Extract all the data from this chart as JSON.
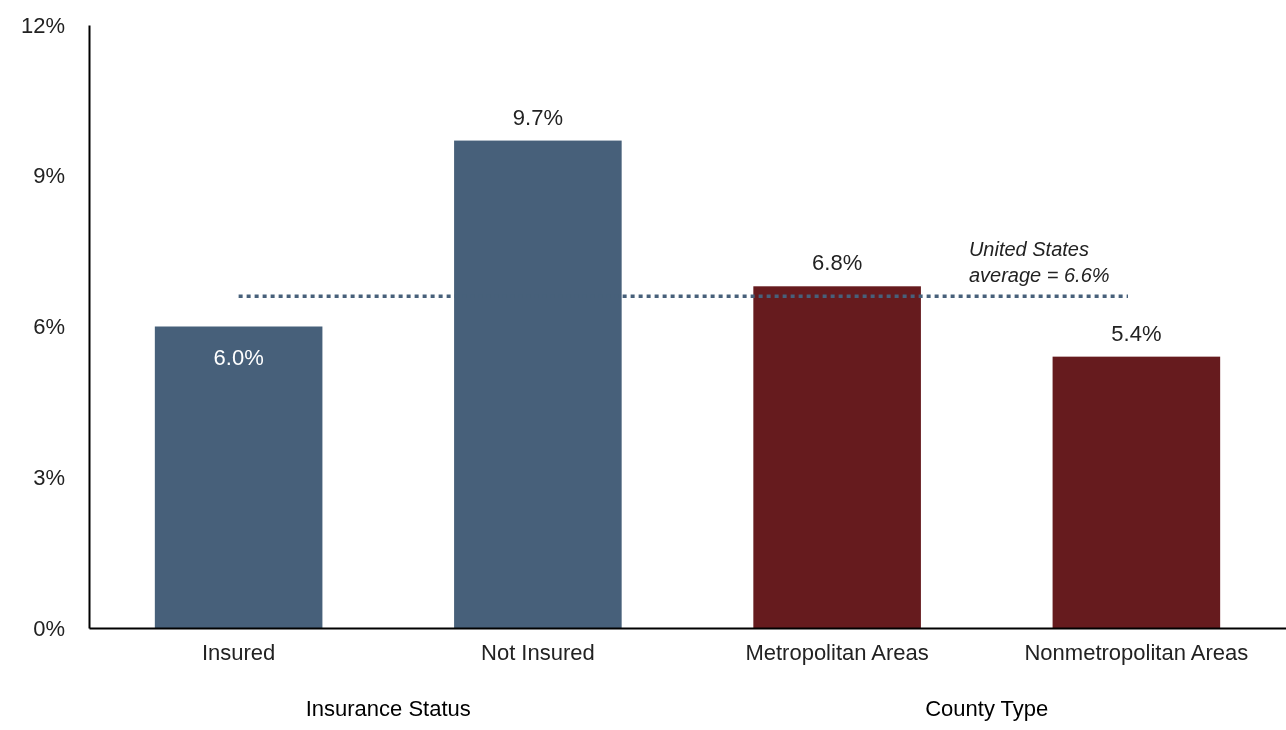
{
  "chart_data": {
    "type": "bar",
    "categories": [
      "Insured",
      "Not Insured",
      "Metropolitan Areas",
      "Nonmetropolitan Areas"
    ],
    "values": [
      6.0,
      9.7,
      6.8,
      5.4
    ],
    "colors": [
      "#47607a",
      "#47607a",
      "#661b1e",
      "#661b1e"
    ],
    "value_labels": [
      "6.0%",
      "9.7%",
      "6.8%",
      "5.4%"
    ],
    "ylim": [
      0,
      12
    ],
    "yticks": [
      {
        "value": 0,
        "label": "0%"
      },
      {
        "value": 3,
        "label": "3%"
      },
      {
        "value": 6,
        "label": "6%"
      },
      {
        "value": 9,
        "label": "9%"
      },
      {
        "value": 12,
        "label": "12%"
      }
    ],
    "ref_lines": [
      {
        "axis": "y",
        "value": 6.6,
        "label": "United States average = 6.6%",
        "color": "#47607a",
        "line_style": "dotted"
      }
    ],
    "annotations": [
      "Insurance Status",
      "County Type"
    ],
    "grid": false
  }
}
